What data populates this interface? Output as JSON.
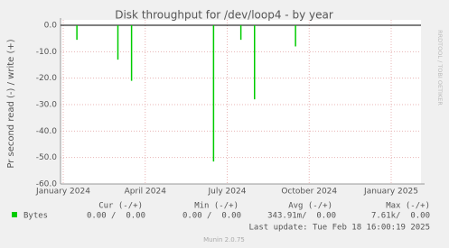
{
  "chart_data": {
    "type": "bar",
    "title": "Disk throughput for /dev/loop4 - by year",
    "y_label": "Pr second read (-) / write (+)",
    "side_text": "RRDTOOL / TOBI OETIKER",
    "categories": [
      "January 2024",
      null,
      null,
      null,
      null,
      null,
      "April 2024",
      null,
      null,
      null,
      null,
      null,
      "July 2024",
      null,
      null,
      null,
      null,
      null,
      "October 2024",
      null,
      null,
      null,
      null,
      null,
      "January 2025",
      null,
      null
    ],
    "series": [
      {
        "name": "Bytes",
        "color": "#00cc00",
        "values": [
          0,
          -5.5,
          0,
          0,
          -13,
          -21,
          0,
          0,
          0,
          0,
          0,
          -51.5,
          0,
          -5.5,
          -28,
          0,
          0,
          -8,
          0,
          0,
          0,
          0,
          0,
          0,
          0,
          0,
          0
        ]
      }
    ],
    "ylim": [
      -60,
      0
    ],
    "yticks": [
      {
        "value": 0,
        "label": "0.0"
      },
      {
        "value": -10,
        "label": "-10.0"
      },
      {
        "value": -20,
        "label": "-20.0"
      },
      {
        "value": -30,
        "label": "-30.0"
      },
      {
        "value": -40,
        "label": "-40.0"
      },
      {
        "value": -50,
        "label": "-50.0"
      },
      {
        "value": -60,
        "label": "-60.0"
      }
    ],
    "grid": true,
    "legend": {
      "headers": [
        "Cur (-/+)",
        "Min (-/+)",
        "Avg (-/+)",
        "Max (-/+)"
      ],
      "rows": [
        [
          "0.00 /  0.00",
          "0.00 /  0.00",
          "343.91m/  0.00",
          "7.61k/  0.00"
        ]
      ]
    },
    "last_update": "Last update: Tue Feb 18 16:00:19 2025",
    "footer": "Munin 2.0.75"
  }
}
